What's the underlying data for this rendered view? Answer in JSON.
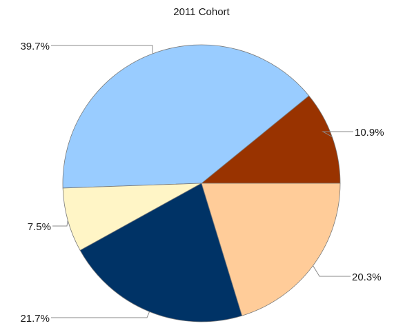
{
  "chart_data": {
    "type": "pie",
    "title": "2011 Cohort",
    "legend": "none",
    "start_angle_deg": 0,
    "direction": "counterclockwise",
    "slices": [
      {
        "value": 10.9,
        "label": "10.9%",
        "color": "#993300"
      },
      {
        "value": 39.7,
        "label": "39.7%",
        "color": "#99ccff"
      },
      {
        "value": 7.5,
        "label": "7.5%",
        "color": "#fff5c6"
      },
      {
        "value": 21.7,
        "label": "21.7%",
        "color": "#003366"
      },
      {
        "value": 20.3,
        "label": "20.3%",
        "color": "#ffcc99"
      }
    ]
  }
}
